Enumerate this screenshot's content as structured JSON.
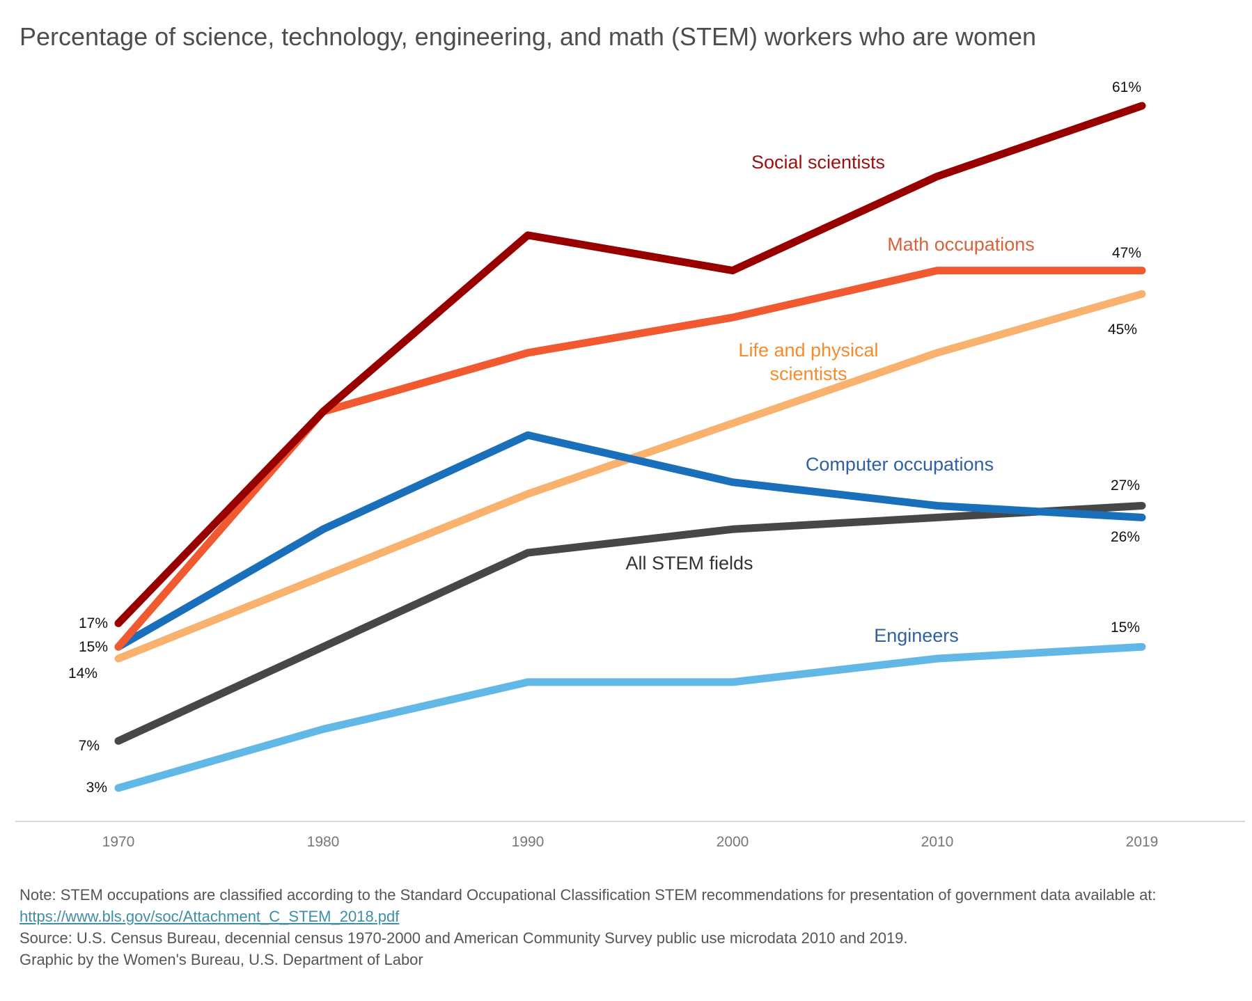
{
  "chart_data": {
    "type": "line",
    "title": "Percentage of science, technology, engineering, and math (STEM) workers who are women",
    "x": [
      "1970",
      "1980",
      "1990",
      "2000",
      "2010",
      "2019"
    ],
    "ylim": [
      0,
      65
    ],
    "grid": false,
    "legend": "inline labels",
    "series": [
      {
        "name": "Social scientists",
        "values": [
          17,
          35,
          50,
          47,
          55,
          61
        ],
        "color": "#980000",
        "label_color": "#9b1010",
        "value_labels": [
          {
            "i": 0,
            "text": "17%"
          },
          {
            "i": 5,
            "text": "61%"
          }
        ]
      },
      {
        "name": "Math occupations",
        "values": [
          15,
          35,
          40,
          43,
          47,
          47
        ],
        "color": "#f15a30",
        "label_color": "#d9623b",
        "value_labels": [
          {
            "i": 5,
            "text": "47%"
          }
        ]
      },
      {
        "name": "Life and physical scientists",
        "values": [
          14,
          21,
          28,
          34,
          40,
          45
        ],
        "color": "#f9b16e",
        "label_color": "#f58b2c",
        "value_labels": [
          {
            "i": 0,
            "text": "14%"
          },
          {
            "i": 5,
            "text": "45%"
          }
        ]
      },
      {
        "name": "Computer occupations",
        "values": [
          15,
          25,
          33,
          29,
          27,
          26
        ],
        "color": "#1a6fba",
        "label_color": "#2f5fa5",
        "value_labels": [
          {
            "i": 0,
            "text": "15%"
          },
          {
            "i": 5,
            "text": "26%"
          }
        ]
      },
      {
        "name": "All STEM fields",
        "values": [
          7,
          15,
          23,
          25,
          26,
          27
        ],
        "color": "#474747",
        "label_color": "#333333",
        "value_labels": [
          {
            "i": 0,
            "text": "7%"
          },
          {
            "i": 5,
            "text": "27%"
          }
        ]
      },
      {
        "name": "Engineers",
        "values": [
          3,
          8,
          12,
          12,
          14,
          15
        ],
        "color": "#61b8e6",
        "label_color": "#2f5fa5",
        "value_labels": [
          {
            "i": 0,
            "text": "3%"
          },
          {
            "i": 5,
            "text": "15%"
          }
        ]
      }
    ]
  },
  "notes": {
    "note": "Note: STEM occupations are classified according to the Standard Occupational Classification STEM recommendations for presentation of government data available at:",
    "link": "https://www.bls.gov/soc/Attachment_C_STEM_2018.pdf",
    "source": "Source: U.S. Census Bureau, decennial census 1970-2000 and American Community Survey public use microdata 2010 and 2019.",
    "credit": "Graphic by the Women's Bureau, U.S. Department of Labor"
  }
}
